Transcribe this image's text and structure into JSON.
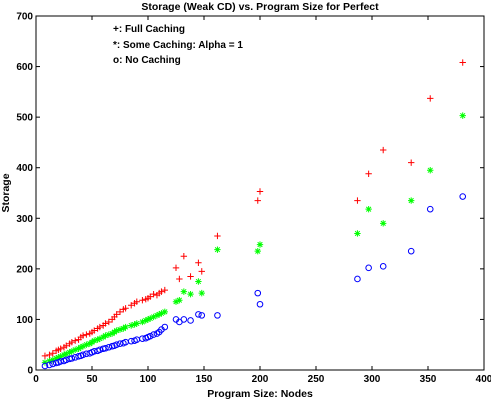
{
  "chart_data": {
    "type": "scatter",
    "title": "Storage (Weak CD) vs. Program Size for Perfect",
    "xlabel": "Program Size: Nodes",
    "ylabel": "Storage",
    "xlim": [
      0,
      400
    ],
    "ylim": [
      0,
      700
    ],
    "xticks": [
      0,
      50,
      100,
      150,
      200,
      250,
      300,
      350,
      400
    ],
    "yticks": [
      0,
      100,
      200,
      300,
      400,
      500,
      600,
      700
    ],
    "grid": false,
    "legend_placement": "top-left, inside plot",
    "legend": [
      "+: Full Caching",
      "*: Some Caching: Alpha = 1",
      "o: No Caching"
    ],
    "series": [
      {
        "marker": "plus",
        "color": "#ff0000",
        "x": [
          8,
          12,
          15,
          18,
          20,
          22,
          25,
          27,
          30,
          32,
          35,
          38,
          40,
          42,
          45,
          48,
          50,
          52,
          55,
          57,
          60,
          62,
          65,
          68,
          70,
          72,
          75,
          78,
          80,
          85,
          88,
          90,
          95,
          98,
          100,
          102,
          105,
          108,
          110,
          112,
          115,
          125,
          128,
          132,
          138,
          145,
          148,
          162,
          198,
          200,
          287,
          297,
          310,
          335,
          352,
          381
        ],
        "y": [
          28,
          30,
          33,
          38,
          40,
          42,
          45,
          48,
          52,
          55,
          58,
          60,
          65,
          68,
          70,
          72,
          75,
          78,
          82,
          85,
          88,
          92,
          95,
          100,
          105,
          110,
          115,
          120,
          122,
          128,
          132,
          135,
          138,
          140,
          142,
          145,
          150,
          148,
          152,
          155,
          158,
          202,
          180,
          225,
          185,
          212,
          195,
          265,
          335,
          353,
          335,
          388,
          435,
          410,
          537,
          608
        ]
      },
      {
        "marker": "asterisk",
        "color": "#00ff00",
        "x": [
          8,
          12,
          15,
          18,
          20,
          22,
          25,
          27,
          30,
          32,
          35,
          38,
          40,
          42,
          45,
          48,
          50,
          52,
          55,
          57,
          60,
          62,
          65,
          68,
          70,
          72,
          75,
          78,
          80,
          85,
          88,
          90,
          95,
          98,
          100,
          102,
          105,
          108,
          110,
          112,
          115,
          125,
          128,
          132,
          138,
          145,
          148,
          162,
          198,
          200,
          287,
          297,
          310,
          335,
          352,
          381
        ],
        "y": [
          15,
          18,
          20,
          23,
          25,
          27,
          30,
          32,
          35,
          37,
          40,
          42,
          45,
          47,
          50,
          52,
          55,
          58,
          60,
          62,
          65,
          68,
          70,
          72,
          75,
          78,
          80,
          82,
          85,
          88,
          90,
          92,
          95,
          98,
          100,
          102,
          105,
          108,
          110,
          112,
          115,
          135,
          138,
          155,
          150,
          175,
          152,
          238,
          235,
          248,
          270,
          318,
          290,
          335,
          395,
          503
        ]
      },
      {
        "marker": "circle",
        "color": "#0000ff",
        "x": [
          8,
          12,
          15,
          18,
          20,
          22,
          25,
          27,
          30,
          32,
          35,
          38,
          40,
          42,
          45,
          48,
          50,
          52,
          55,
          57,
          60,
          62,
          65,
          68,
          70,
          72,
          75,
          78,
          80,
          85,
          88,
          90,
          95,
          98,
          100,
          102,
          105,
          108,
          110,
          112,
          115,
          125,
          128,
          132,
          138,
          145,
          148,
          162,
          198,
          200,
          287,
          297,
          310,
          335,
          352,
          381
        ],
        "y": [
          8,
          10,
          12,
          14,
          15,
          17,
          18,
          20,
          22,
          23,
          25,
          27,
          28,
          30,
          32,
          33,
          35,
          37,
          38,
          40,
          42,
          43,
          45,
          47,
          48,
          50,
          52,
          53,
          55,
          57,
          58,
          60,
          62,
          63,
          65,
          67,
          70,
          72,
          75,
          80,
          85,
          100,
          95,
          100,
          98,
          110,
          108,
          108,
          152,
          130,
          180,
          202,
          205,
          235,
          318,
          343
        ]
      }
    ]
  }
}
